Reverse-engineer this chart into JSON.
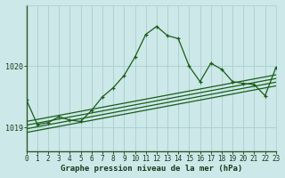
{
  "xlabel": "Graphe pression niveau de la mer (hPa)",
  "bg_color": "#cce8e8",
  "grid_color": "#aacece",
  "line_color": "#1a5c1a",
  "x_ticks": [
    0,
    1,
    2,
    3,
    4,
    5,
    6,
    7,
    8,
    9,
    10,
    11,
    12,
    13,
    14,
    15,
    16,
    17,
    18,
    19,
    20,
    21,
    22,
    23
  ],
  "y_ticks": [
    1019,
    1020
  ],
  "xlim": [
    0,
    23
  ],
  "ylim": [
    1018.62,
    1021.0
  ],
  "main_x": [
    0,
    1,
    2,
    3,
    4,
    5,
    6,
    7,
    8,
    9,
    10,
    11,
    12,
    13,
    14,
    15,
    16,
    17,
    18,
    19,
    20,
    21,
    22,
    23
  ],
  "main_y": [
    1019.45,
    1019.05,
    1019.08,
    1019.18,
    1019.12,
    1019.1,
    1019.28,
    1019.5,
    1019.65,
    1019.85,
    1020.15,
    1020.52,
    1020.65,
    1020.5,
    1020.45,
    1020.0,
    1019.75,
    1020.05,
    1019.95,
    1019.75,
    1019.72,
    1019.7,
    1019.52,
    1019.98
  ],
  "trend1_x": [
    0,
    23
  ],
  "trend1_y": [
    1018.92,
    1019.68
  ],
  "trend2_x": [
    0,
    23
  ],
  "trend2_y": [
    1018.98,
    1019.74
  ],
  "trend3_x": [
    0,
    23
  ],
  "trend3_y": [
    1019.04,
    1019.8
  ],
  "trend4_x": [
    0,
    23
  ],
  "trend4_y": [
    1019.1,
    1019.86
  ],
  "xlabel_fontsize": 6.5,
  "tick_fontsize": 5.5,
  "ytick_fontsize": 6.0
}
